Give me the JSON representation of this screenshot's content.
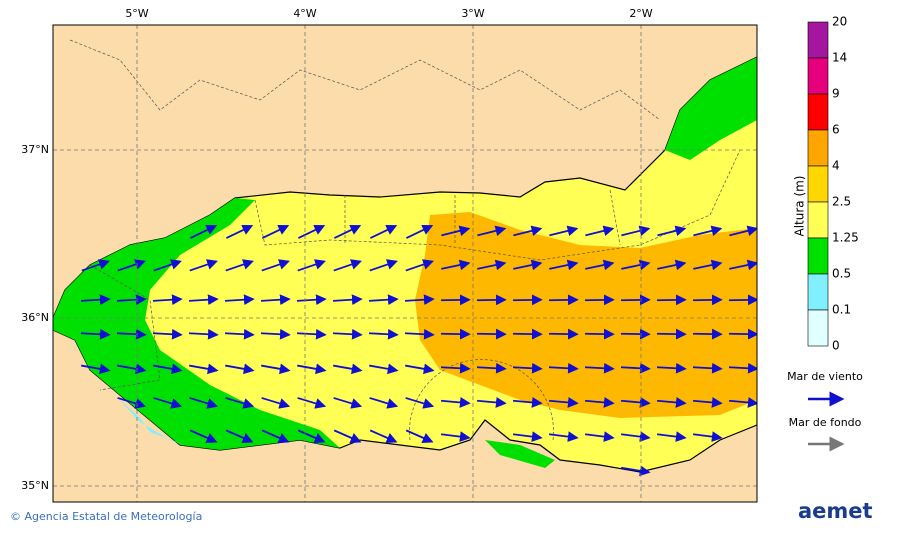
{
  "map": {
    "longitude_labels": [
      "5°W",
      "4°W",
      "3°W",
      "2°W"
    ],
    "latitude_labels": [
      "37°N",
      "36°N",
      "35°N"
    ],
    "colorbar": {
      "title": "Altura (m)",
      "levels": [
        "20",
        "14",
        "9",
        "6",
        "4",
        "2.5",
        "1.25",
        "0.5",
        "0.1",
        "0"
      ],
      "colors": [
        "#a4169e",
        "#e6007e",
        "#ff0000",
        "#ffa500",
        "#ffd700",
        "#ffff55",
        "#00e000",
        "#80f0ff",
        "#e0ffff"
      ]
    },
    "legend": {
      "wind_sea": "Mar de viento",
      "swell": "Mar de fondo"
    }
  },
  "footer": {
    "credit": "© Agencia Estatal de Meteorología",
    "logo": "aemet"
  }
}
